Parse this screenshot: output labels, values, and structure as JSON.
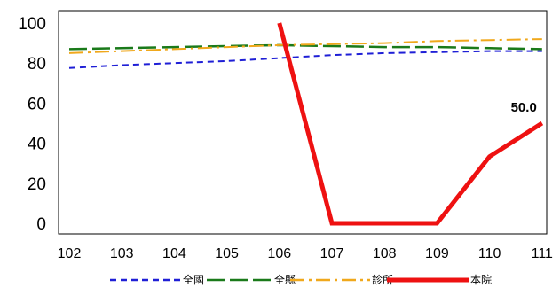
{
  "chart_data": {
    "type": "line",
    "categories": [
      "102",
      "103",
      "104",
      "105",
      "106",
      "107",
      "108",
      "109",
      "110",
      "111"
    ],
    "yticks": [
      "0",
      "20",
      "40",
      "60",
      "80",
      "100"
    ],
    "ylim": [
      0,
      100
    ],
    "grid": false,
    "legend_position": "bottom",
    "series": [
      {
        "name": "全國",
        "color": "#1f1fd6",
        "style": "dash",
        "values": [
          77.5,
          79,
          80,
          81,
          82.5,
          84,
          85,
          85.5,
          86,
          86
        ]
      },
      {
        "name": "全縣",
        "color": "#1a7a1a",
        "style": "longdash",
        "values": [
          87,
          87.5,
          88,
          88.5,
          89,
          88.5,
          88,
          88,
          87.5,
          87
        ]
      },
      {
        "name": "診所",
        "color": "#f0a81c",
        "style": "dashdot",
        "values": [
          85,
          86,
          87,
          88,
          89,
          89.5,
          90,
          91,
          91.5,
          92
        ]
      },
      {
        "name": "本院",
        "color": "#ee1111",
        "style": "solid",
        "values": [
          null,
          null,
          null,
          null,
          100,
          0,
          0,
          0,
          33.3,
          50.0
        ]
      }
    ],
    "annotations": [
      {
        "series": "本院",
        "category": "111",
        "text": "50.0"
      }
    ]
  }
}
